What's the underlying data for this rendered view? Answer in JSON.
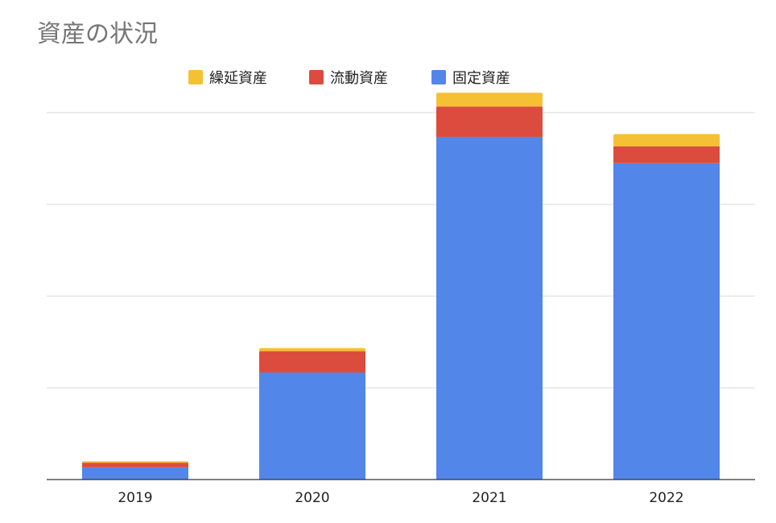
{
  "chart_data": {
    "type": "bar",
    "stacked": true,
    "title": "資産の状況",
    "xlabel": "",
    "ylabel": "",
    "categories": [
      "2019",
      "2020",
      "2021",
      "2022"
    ],
    "series": [
      {
        "name": "固定資産",
        "color": "#5286e9",
        "values": [
          0.4,
          3.5,
          11.2,
          10.35
        ]
      },
      {
        "name": "流動資産",
        "color": "#dc4c3e",
        "values": [
          0.15,
          0.7,
          1.0,
          0.55
        ]
      },
      {
        "name": "繰延資産",
        "color": "#f5c033",
        "values": [
          0.05,
          0.1,
          0.45,
          0.4
        ]
      }
    ],
    "legend_order": [
      "繰延資産",
      "流動資産",
      "固定資産"
    ],
    "legend_position": "top",
    "ylim": [
      0,
      12
    ],
    "gridlines": [
      0,
      3,
      6,
      9,
      12
    ],
    "grid": true
  }
}
